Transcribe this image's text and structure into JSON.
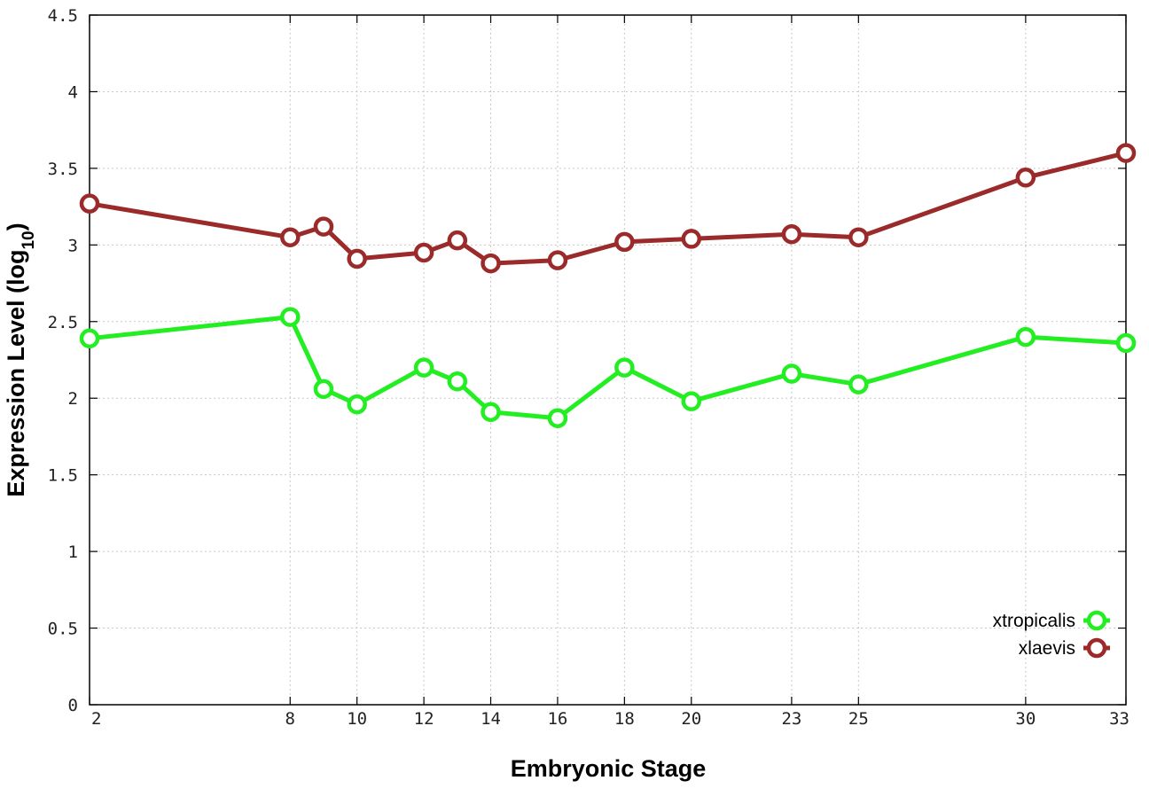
{
  "chart_data": {
    "type": "line",
    "xlabel": "Embryonic Stage",
    "ylabel_main": "Expression Level (log",
    "ylabel_sub": "10",
    "ylabel_close": ")",
    "xlim": [
      2,
      33
    ],
    "ylim": [
      0,
      4.5
    ],
    "x_ticks": [
      2,
      8,
      10,
      12,
      14,
      16,
      18,
      20,
      23,
      25,
      30,
      33
    ],
    "y_ticks": [
      0,
      0.5,
      1,
      1.5,
      2,
      2.5,
      3,
      3.5,
      4,
      4.5
    ],
    "y_tick_labels": [
      "0",
      "0.5",
      "1",
      "1.5",
      "2",
      "2.5",
      "3",
      "3.5",
      "4",
      "4.5"
    ],
    "grid": true,
    "legend_position": "bottom-right",
    "x": [
      2,
      8,
      9,
      10,
      12,
      13,
      14,
      16,
      18,
      20,
      23,
      25,
      30,
      33
    ],
    "series": [
      {
        "name": "xtropicalis",
        "color": "#22ee22",
        "values": [
          2.39,
          2.53,
          2.06,
          1.96,
          2.2,
          2.11,
          1.91,
          1.87,
          2.2,
          1.98,
          2.16,
          2.09,
          2.4,
          2.36
        ]
      },
      {
        "name": "xlaevis",
        "color": "#9b2a2a",
        "values": [
          3.27,
          3.05,
          3.12,
          2.91,
          2.95,
          3.03,
          2.88,
          2.9,
          3.02,
          3.04,
          3.07,
          3.05,
          3.44,
          3.6
        ]
      }
    ]
  }
}
